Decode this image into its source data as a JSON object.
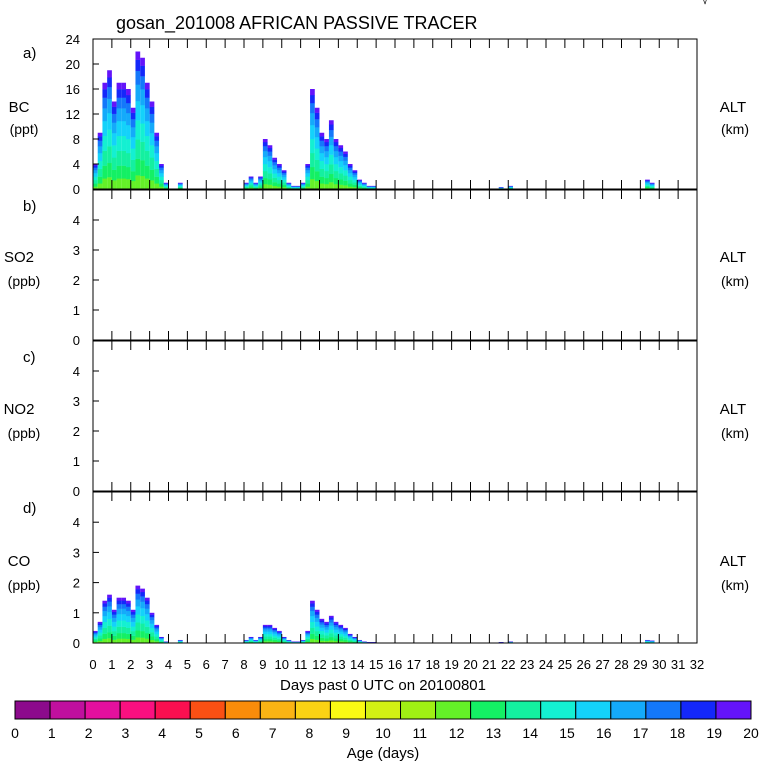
{
  "title": "gosan_201008 AFRICAN PASSIVE TRACER",
  "corner_mark": "√",
  "chart_data": [
    {
      "type": "area",
      "panel_label": "a)",
      "species": "BC",
      "unit": "(ppt)",
      "right_label": "ALT",
      "right_unit": "(km)",
      "ylim": [
        0,
        24
      ],
      "yticks": [
        "0",
        "4",
        "8",
        "12",
        "16",
        "20",
        "24"
      ],
      "x": [
        0.0,
        0.25,
        0.5,
        0.75,
        1.0,
        1.25,
        1.5,
        1.75,
        2.0,
        2.25,
        2.5,
        2.75,
        3.0,
        3.25,
        3.5,
        3.75,
        4.0,
        4.25,
        4.5,
        4.75,
        5.0,
        7.75,
        8.0,
        8.25,
        8.5,
        8.75,
        9.0,
        9.25,
        9.5,
        9.75,
        10.0,
        10.25,
        10.5,
        10.75,
        11.0,
        11.25,
        11.5,
        11.75,
        12.0,
        12.25,
        12.5,
        12.75,
        13.0,
        13.25,
        13.5,
        13.75,
        14.0,
        14.25,
        14.5,
        14.75,
        15.0,
        15.5,
        21.5,
        22.0,
        22.5,
        29.0,
        29.25,
        29.5
      ],
      "values": [
        4,
        9,
        17,
        19,
        14,
        17,
        17,
        16,
        13,
        22,
        21,
        17,
        14,
        9,
        4,
        1,
        0,
        0,
        1,
        0,
        0,
        0,
        1,
        2,
        1,
        2,
        8,
        7,
        5,
        4,
        3,
        1,
        0.5,
        0.5,
        1,
        4,
        16,
        13,
        9,
        8,
        11,
        8,
        7,
        6,
        4,
        3,
        1.5,
        1,
        0.5,
        0.5,
        0,
        0,
        0.3,
        0.5,
        0,
        0,
        1.5,
        1
      ],
      "series": [
        {
          "name": "",
          "values": [
            4,
            9,
            17,
            19,
            14,
            17,
            17,
            16,
            13,
            22,
            21,
            17,
            14,
            9,
            4,
            1,
            0,
            0,
            1,
            0,
            0,
            0,
            1,
            2,
            1,
            2,
            8,
            7,
            5,
            4,
            3,
            1,
            0.5,
            0.5,
            1,
            4,
            16,
            13,
            9,
            8,
            11,
            8,
            7,
            6,
            4,
            3,
            1.5,
            1,
            0.5,
            0.5,
            0,
            0,
            0.3,
            0.5,
            0,
            0,
            1.5,
            1
          ]
        }
      ]
    },
    {
      "type": "area",
      "panel_label": "b)",
      "species": "SO2",
      "unit": "(ppb)",
      "right_label": "ALT",
      "right_unit": "(km)",
      "ylim": [
        0,
        5
      ],
      "yticks": [
        "0",
        "1",
        "2",
        "3",
        "4"
      ],
      "x": [],
      "values": [],
      "series": []
    },
    {
      "type": "area",
      "panel_label": "c)",
      "species": "NO2",
      "unit": "(ppb)",
      "right_label": "ALT",
      "right_unit": "(km)",
      "ylim": [
        0,
        5
      ],
      "yticks": [
        "0",
        "1",
        "2",
        "3",
        "4"
      ],
      "x": [],
      "values": [],
      "series": []
    },
    {
      "type": "area",
      "panel_label": "d)",
      "species": "CO",
      "unit": "(ppb)",
      "right_label": "ALT",
      "right_unit": "(km)",
      "ylim": [
        0,
        5
      ],
      "yticks": [
        "0",
        "1",
        "2",
        "3",
        "4"
      ],
      "x": [
        0.0,
        0.25,
        0.5,
        0.75,
        1.0,
        1.25,
        1.5,
        1.75,
        2.0,
        2.25,
        2.5,
        2.75,
        3.0,
        3.25,
        3.5,
        3.75,
        4.0,
        4.25,
        4.5,
        4.75,
        5.0,
        7.75,
        8.0,
        8.25,
        8.5,
        8.75,
        9.0,
        9.25,
        9.5,
        9.75,
        10.0,
        10.25,
        10.5,
        10.75,
        11.0,
        11.25,
        11.5,
        11.75,
        12.0,
        12.25,
        12.5,
        12.75,
        13.0,
        13.25,
        13.5,
        13.75,
        14.0,
        14.25,
        14.5,
        14.75,
        15.0,
        15.5,
        21.5,
        22.0,
        22.5,
        29.0,
        29.25,
        29.5
      ],
      "values": [
        0.4,
        0.7,
        1.4,
        1.6,
        1.1,
        1.5,
        1.5,
        1.4,
        1.1,
        1.9,
        1.8,
        1.5,
        1.0,
        0.6,
        0.2,
        0.05,
        0,
        0,
        0.1,
        0,
        0,
        0,
        0.1,
        0.2,
        0.1,
        0.2,
        0.6,
        0.6,
        0.5,
        0.4,
        0.2,
        0.1,
        0.05,
        0.05,
        0.1,
        0.4,
        1.4,
        1.1,
        0.8,
        0.7,
        0.9,
        0.7,
        0.6,
        0.5,
        0.3,
        0.2,
        0.1,
        0.05,
        0.03,
        0.03,
        0,
        0,
        0.03,
        0.05,
        0,
        0,
        0.1,
        0.08
      ],
      "series": [
        {
          "name": "",
          "values": [
            0.4,
            0.7,
            1.4,
            1.6,
            1.1,
            1.5,
            1.5,
            1.4,
            1.1,
            1.9,
            1.8,
            1.5,
            1.0,
            0.6,
            0.2,
            0.05,
            0,
            0,
            0.1,
            0,
            0,
            0,
            0.1,
            0.2,
            0.1,
            0.2,
            0.6,
            0.6,
            0.5,
            0.4,
            0.2,
            0.1,
            0.05,
            0.05,
            0.1,
            0.4,
            1.4,
            1.1,
            0.8,
            0.7,
            0.9,
            0.7,
            0.6,
            0.5,
            0.3,
            0.2,
            0.1,
            0.05,
            0.03,
            0.03,
            0,
            0,
            0.03,
            0.05,
            0,
            0,
            0.1,
            0.08
          ]
        }
      ]
    }
  ],
  "x_axis": {
    "label": "Days past 0 UTC on 20100801",
    "xlim": [
      0,
      32
    ],
    "tick_labels": [
      "0",
      "1",
      "2",
      "3",
      "4",
      "5",
      "6",
      "7",
      "8",
      "9",
      "10",
      "11",
      "12",
      "13",
      "14",
      "15",
      "16",
      "17",
      "18",
      "19",
      "20",
      "21",
      "22",
      "23",
      "24",
      "25",
      "26",
      "27",
      "28",
      "29",
      "30",
      "31",
      "32"
    ]
  },
  "colorbar": {
    "label": "Age (days)",
    "tick_labels": [
      "0",
      "1",
      "2",
      "3",
      "4",
      "5",
      "6",
      "7",
      "8",
      "9",
      "10",
      "11",
      "12",
      "13",
      "14",
      "15",
      "16",
      "17",
      "18",
      "19",
      "20"
    ],
    "colors": [
      "#8c0a8c",
      "#c0109e",
      "#e4109e",
      "#fa1080",
      "#fa1050",
      "#fa5014",
      "#fa8c0a",
      "#fab414",
      "#fad214",
      "#fafa14",
      "#d2f014",
      "#a0f014",
      "#64f028",
      "#14f064",
      "#14f0a0",
      "#14f0d2",
      "#14d2fa",
      "#14aafa",
      "#1478fa",
      "#1428fa",
      "#6414fa"
    ]
  }
}
